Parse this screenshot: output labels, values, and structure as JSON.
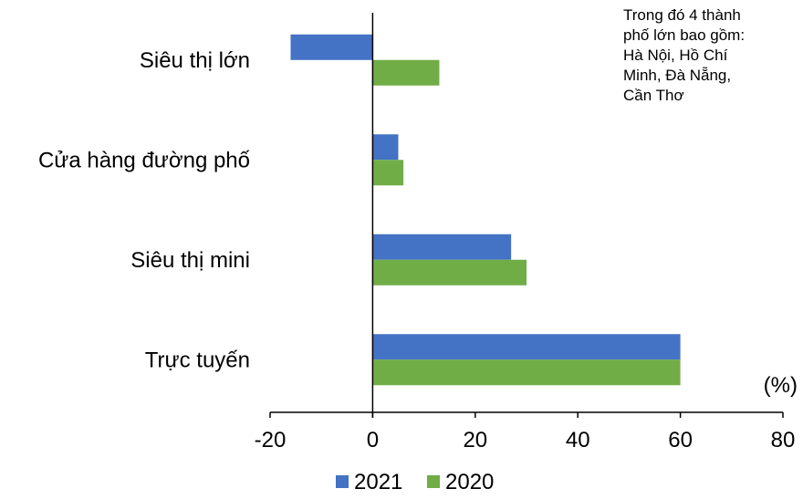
{
  "chart_data": {
    "type": "bar",
    "orientation": "horizontal",
    "categories": [
      "Siêu thị lớn",
      "Cửa hàng đường phố",
      "Siêu thị mini",
      "Trực tuyến"
    ],
    "series": [
      {
        "name": "2021",
        "color": "#4472C4",
        "values": [
          -16,
          5,
          27,
          60
        ]
      },
      {
        "name": "2020",
        "color": "#70AD47",
        "values": [
          13,
          6,
          30,
          60
        ]
      }
    ],
    "xlim": [
      -20,
      80
    ],
    "xticks": [
      "-20",
      "0",
      "20",
      "40",
      "60",
      "80"
    ],
    "unit_label": "(%)",
    "legend": "bottom",
    "grid": false
  },
  "note": {
    "lines": [
      "Trong đó 4 thành",
      "phố lớn bao gồm:",
      "Hà Nội, Hồ Chí",
      "Minh, Đà Nẵng,",
      "Cần Thơ"
    ]
  }
}
